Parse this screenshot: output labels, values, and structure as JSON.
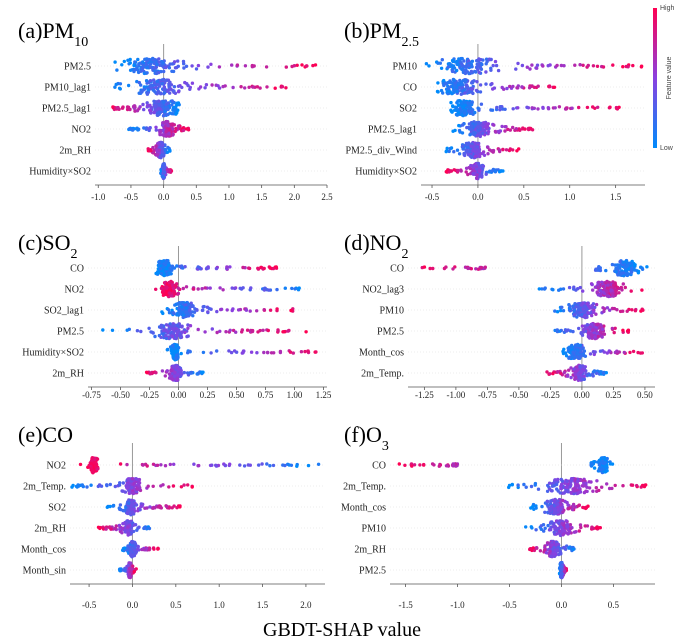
{
  "figure": {
    "xlabel": "GBDT-SHAP value",
    "colorbar": {
      "high": "High",
      "low": "Low",
      "label": "Feature value",
      "color_high": "#ff0052",
      "color_low": "#008bfb"
    }
  },
  "chart_data": [
    {
      "type": "scatter",
      "kind": "shap-beeswarm",
      "title_main": "(a)PM",
      "title_sub": "10",
      "xlim": [
        -1.05,
        2.5
      ],
      "xticks": [
        "-1.0",
        "-0.5",
        "0.0",
        "0.5",
        "1.0",
        "1.5",
        "2.0",
        "2.5"
      ],
      "xtick_values": [
        -1.0,
        -0.5,
        0.0,
        0.5,
        1.0,
        1.5,
        2.0,
        2.5
      ],
      "features": [
        {
          "name": "PM2.5",
          "min": -0.75,
          "max": 2.35,
          "low_side": "left",
          "mode": -0.2,
          "spread": 0.6
        },
        {
          "name": "PM10_lag1",
          "min": -0.75,
          "max": 1.95,
          "low_side": "left",
          "mode": -0.1,
          "spread": 0.5
        },
        {
          "name": "PM2.5_lag1",
          "min": -0.85,
          "max": 0.25,
          "low_side": "right",
          "mode": 0.0,
          "spread": 0.35
        },
        {
          "name": "NO2",
          "min": -0.55,
          "max": 0.4,
          "low_side": "left",
          "mode": 0.05,
          "spread": 0.15
        },
        {
          "name": "2m_RH",
          "min": -0.25,
          "max": 0.1,
          "low_side": "right",
          "mode": -0.05,
          "spread": 0.08
        },
        {
          "name": "Humidity×SO2",
          "min": -0.05,
          "max": 0.12,
          "low_side": "left",
          "mode": 0.0,
          "spread": 0.03
        }
      ]
    },
    {
      "type": "scatter",
      "kind": "shap-beeswarm",
      "title_main": "(b)PM",
      "title_sub": "2.5",
      "xlim": [
        -0.62,
        1.82
      ],
      "xticks": [
        "-0.5",
        "0.0",
        "0.5",
        "1.0",
        "1.5"
      ],
      "xtick_values": [
        -0.5,
        0.0,
        0.5,
        1.0,
        1.5
      ],
      "features": [
        {
          "name": "PM10",
          "min": -0.6,
          "max": 1.8,
          "low_side": "left",
          "mode": -0.1,
          "spread": 0.5
        },
        {
          "name": "CO",
          "min": -0.45,
          "max": 0.85,
          "low_side": "left",
          "mode": -0.2,
          "spread": 0.3
        },
        {
          "name": "SO2",
          "min": -0.3,
          "max": 1.55,
          "low_side": "left",
          "mode": -0.15,
          "spread": 0.2
        },
        {
          "name": "PM2.5_lag1",
          "min": -0.3,
          "max": 0.6,
          "low_side": "left",
          "mode": 0.0,
          "spread": 0.2
        },
        {
          "name": "PM2.5_div_Wind",
          "min": -0.35,
          "max": 0.45,
          "low_side": "left",
          "mode": -0.05,
          "spread": 0.15
        },
        {
          "name": "Humidity×SO2",
          "min": -0.35,
          "max": 0.28,
          "low_side": "right",
          "mode": 0.0,
          "spread": 0.1
        }
      ]
    },
    {
      "type": "scatter",
      "kind": "shap-beeswarm",
      "title_main": "(c)SO",
      "title_sub": "2",
      "xlim": [
        -0.78,
        1.28
      ],
      "xticks": [
        "-0.75",
        "-0.50",
        "-0.25",
        "0.00",
        "0.25",
        "0.50",
        "0.75",
        "1.00",
        "1.25"
      ],
      "xtick_values": [
        -0.75,
        -0.5,
        -0.25,
        0.0,
        0.25,
        0.5,
        0.75,
        1.0,
        1.25
      ],
      "features": [
        {
          "name": "CO",
          "min": -0.2,
          "max": 0.85,
          "low_side": "left",
          "mode": -0.12,
          "spread": 0.1
        },
        {
          "name": "NO2",
          "min": -0.2,
          "max": 1.05,
          "low_side": "right",
          "mode": -0.08,
          "spread": 0.1
        },
        {
          "name": "SO2_lag1",
          "min": -0.15,
          "max": 1.02,
          "low_side": "left",
          "mode": 0.05,
          "spread": 0.15
        },
        {
          "name": "PM2.5",
          "min": -0.7,
          "max": 1.1,
          "low_side": "left",
          "mode": -0.05,
          "spread": 0.2
        },
        {
          "name": "Humidity×SO2",
          "min": -0.1,
          "max": 1.25,
          "low_side": "left",
          "mode": -0.03,
          "spread": 0.05
        },
        {
          "name": "2m_RH",
          "min": -0.3,
          "max": 0.22,
          "low_side": "right",
          "mode": -0.02,
          "spread": 0.07
        }
      ]
    },
    {
      "type": "scatter",
      "kind": "shap-beeswarm",
      "title_main": "(d)NO",
      "title_sub": "2",
      "xlim": [
        -1.38,
        0.58
      ],
      "xticks": [
        "-1.25",
        "-1.00",
        "-0.75",
        "-0.50",
        "-0.25",
        "0.00",
        "0.25",
        "0.50"
      ],
      "xtick_values": [
        -1.25,
        -1.0,
        -0.75,
        -0.5,
        -0.25,
        0.0,
        0.25,
        0.5
      ],
      "features": [
        {
          "name": "CO",
          "min": -1.35,
          "max": 0.55,
          "low_side": "right",
          "mode": 0.35,
          "spread": 0.15,
          "gap": [
            -0.75,
            0.1
          ]
        },
        {
          "name": "NO2_lag3",
          "min": -0.35,
          "max": 0.5,
          "low_side": "left",
          "mode": 0.2,
          "spread": 0.15
        },
        {
          "name": "PM10",
          "min": -0.25,
          "max": 0.5,
          "low_side": "left",
          "mode": 0.0,
          "spread": 0.15
        },
        {
          "name": "PM2.5",
          "min": -0.25,
          "max": 0.38,
          "low_side": "left",
          "mode": 0.1,
          "spread": 0.12
        },
        {
          "name": "Month_cos",
          "min": -0.15,
          "max": 0.5,
          "low_side": "left",
          "mode": -0.05,
          "spread": 0.1
        },
        {
          "name": "2m_Temp.",
          "min": -0.28,
          "max": 0.2,
          "low_side": "right",
          "mode": -0.02,
          "spread": 0.08
        }
      ]
    },
    {
      "type": "scatter",
      "kind": "shap-beeswarm",
      "title_main": "(e)CO",
      "title_sub": "",
      "xlim": [
        -0.72,
        2.22
      ],
      "xticks": [
        "-0.5",
        "0.0",
        "0.5",
        "1.0",
        "1.5",
        "2.0"
      ],
      "xtick_values": [
        -0.5,
        0.0,
        0.5,
        1.0,
        1.5,
        2.0
      ],
      "features": [
        {
          "name": "NO2",
          "min": -0.6,
          "max": 2.2,
          "low_side": "right",
          "mode": -0.45,
          "spread": 0.08
        },
        {
          "name": "2m_Temp.",
          "min": -0.7,
          "max": 0.72,
          "low_side": "left",
          "mode": 0.0,
          "spread": 0.15
        },
        {
          "name": "SO2",
          "min": -0.3,
          "max": 0.55,
          "low_side": "left",
          "mode": -0.02,
          "spread": 0.1
        },
        {
          "name": "2m_RH",
          "min": -0.4,
          "max": 0.22,
          "low_side": "right",
          "mode": -0.05,
          "spread": 0.08
        },
        {
          "name": "Month_cos",
          "min": -0.12,
          "max": 0.3,
          "low_side": "left",
          "mode": 0.0,
          "spread": 0.05
        },
        {
          "name": "Month_sin",
          "min": -0.15,
          "max": 0.05,
          "low_side": "left",
          "mode": -0.03,
          "spread": 0.03
        }
      ]
    },
    {
      "type": "scatter",
      "kind": "shap-beeswarm",
      "title_main": "(f)O",
      "title_sub": "3",
      "xlim": [
        -1.65,
        0.9
      ],
      "xticks": [
        "-1.5",
        "-1.0",
        "-0.5",
        "0.0",
        "0.5"
      ],
      "xtick_values": [
        -1.5,
        -1.0,
        -0.5,
        0.0,
        0.5
      ],
      "features": [
        {
          "name": "CO",
          "min": -1.6,
          "max": 0.5,
          "low_side": "right",
          "mode": 0.4,
          "spread": 0.07,
          "gap": [
            -1.0,
            0.28
          ]
        },
        {
          "name": "2m_Temp.",
          "min": -0.55,
          "max": 0.82,
          "low_side": "left",
          "mode": 0.1,
          "spread": 0.3
        },
        {
          "name": "Month_cos",
          "min": -0.3,
          "max": 0.28,
          "low_side": "left",
          "mode": -0.05,
          "spread": 0.15
        },
        {
          "name": "PM10",
          "min": -0.35,
          "max": 0.38,
          "low_side": "left",
          "mode": 0.0,
          "spread": 0.15
        },
        {
          "name": "2m_RH",
          "min": -0.32,
          "max": 0.14,
          "low_side": "right",
          "mode": -0.08,
          "spread": 0.1
        },
        {
          "name": "PM2.5",
          "min": -0.02,
          "max": 0.05,
          "low_side": "left",
          "mode": 0.0,
          "spread": 0.02
        }
      ]
    }
  ]
}
